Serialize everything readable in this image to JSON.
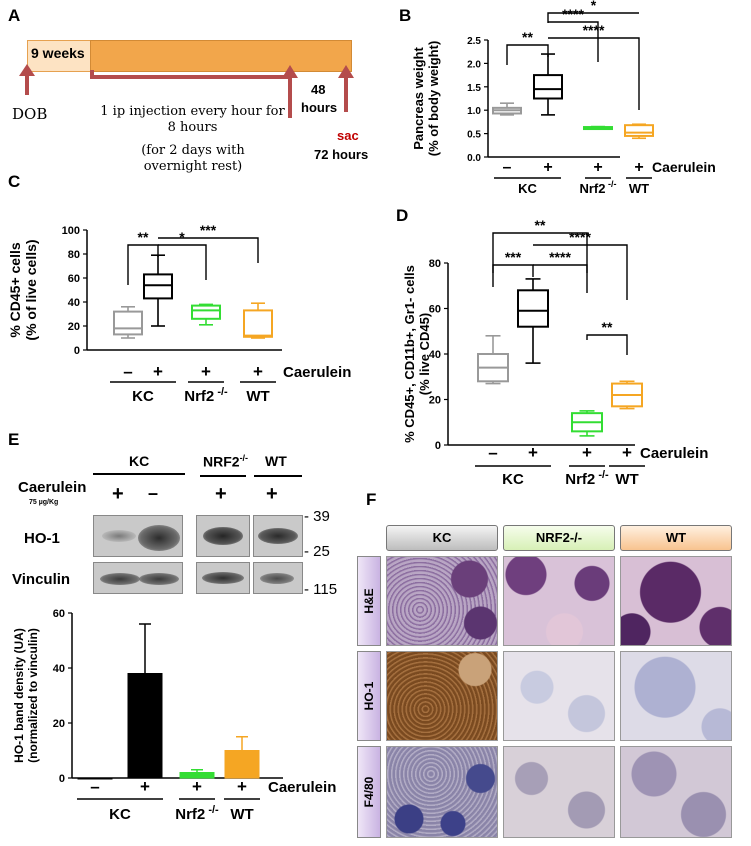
{
  "panels": {
    "a": "A",
    "b": "B",
    "c": "C",
    "d": "D",
    "e": "E",
    "f": "F"
  },
  "panel_a": {
    "age": "9 weeks",
    "dob": "DOB",
    "injection": "1 ip injection every hour for 8 hours",
    "schedule": "(for 2 days with overnight rest)",
    "t48": "48",
    "t48b": "hours",
    "sac": "sac",
    "t72": "72 hours",
    "colors": {
      "bar": "#f2a64b",
      "age_box": "#fde3c3",
      "arrow": "#b44c4c",
      "sac": "#c00000"
    }
  },
  "caerulein_label": "Caerulein",
  "panel_e": {
    "kc": "KC",
    "nrf2": "NRF2",
    "nrf2_sup": "-/-",
    "wt": "WT",
    "caerulein": "Caerulein",
    "dose": "75 µg/Kg",
    "signs": [
      "+",
      "–",
      "+",
      "+"
    ],
    "ho1": "HO-1",
    "vinculin": "Vinculin",
    "mw": [
      "- 39",
      "- 25",
      "- 115"
    ]
  },
  "panel_f": {
    "columns": [
      "KC",
      "NRF2-/-",
      "WT"
    ],
    "rows": [
      "H&E",
      "HO-1",
      "F4/80"
    ],
    "header_colors": [
      "#d0d0d0",
      "#e3f5c8",
      "#fbd3ad"
    ]
  },
  "chart_data": [
    {
      "id": "B",
      "type": "box",
      "ylabel": "Pancreas weight (% of body weight)",
      "ylim": [
        0,
        2.5
      ],
      "yticks": [
        "0.0",
        "0.5",
        "1.0",
        "1.5",
        "2.0",
        "2.5"
      ],
      "caerulein": [
        "–",
        "+",
        "+",
        "+"
      ],
      "groups": [
        "KC",
        "Nrf2 -/-",
        "WT"
      ],
      "series": [
        {
          "color": "#999999",
          "min": 0.9,
          "q1": 0.93,
          "median": 1.0,
          "q3": 1.05,
          "max": 1.15
        },
        {
          "color": "#000000",
          "min": 0.9,
          "q1": 1.25,
          "median": 1.45,
          "q3": 1.75,
          "max": 2.2
        },
        {
          "color": "#33dd33",
          "min": 0.6,
          "q1": 0.6,
          "median": 0.62,
          "q3": 0.64,
          "max": 0.65
        },
        {
          "color": "#f5a623",
          "min": 0.4,
          "q1": 0.45,
          "median": 0.52,
          "q3": 0.68,
          "max": 0.7
        }
      ],
      "significance": [
        "*",
        "**",
        "****",
        "****"
      ]
    },
    {
      "id": "C",
      "type": "box",
      "ylabel": "% CD45+ cells (% of live cells)",
      "ylim": [
        0,
        100
      ],
      "yticks": [
        "0",
        "20",
        "40",
        "60",
        "80",
        "100"
      ],
      "caerulein": [
        "–",
        "+",
        "+",
        "+"
      ],
      "groups": [
        "KC",
        "Nrf2 -/-",
        "WT"
      ],
      "series": [
        {
          "color": "#999999",
          "min": 10,
          "q1": 13,
          "median": 18,
          "q3": 32,
          "max": 36
        },
        {
          "color": "#000000",
          "min": 20,
          "q1": 43,
          "median": 54,
          "q3": 63,
          "max": 79
        },
        {
          "color": "#33dd33",
          "min": 21,
          "q1": 26,
          "median": 33,
          "q3": 37,
          "max": 38
        },
        {
          "color": "#f5a623",
          "min": 10,
          "q1": 11,
          "median": 12,
          "q3": 33,
          "max": 39
        }
      ],
      "significance": [
        "**",
        "*",
        "***"
      ]
    },
    {
      "id": "D",
      "type": "box",
      "ylabel": "% CD45+, CD11b+, Gr1- cells (% live CD45)",
      "ylim": [
        0,
        80
      ],
      "yticks": [
        "0",
        "20",
        "40",
        "60",
        "80"
      ],
      "caerulein": [
        "–",
        "+",
        "+",
        "+"
      ],
      "groups": [
        "KC",
        "Nrf2 -/-",
        "WT"
      ],
      "series": [
        {
          "color": "#999999",
          "min": 27,
          "q1": 28,
          "median": 34,
          "q3": 40,
          "max": 48
        },
        {
          "color": "#000000",
          "min": 36,
          "q1": 52,
          "median": 59,
          "q3": 68,
          "max": 73
        },
        {
          "color": "#33dd33",
          "min": 4,
          "q1": 6,
          "median": 10,
          "q3": 14,
          "max": 15
        },
        {
          "color": "#f5a623",
          "min": 16,
          "q1": 17,
          "median": 22,
          "q3": 27,
          "max": 28
        }
      ],
      "significance": [
        "**",
        "***",
        "****",
        "****",
        "**"
      ]
    },
    {
      "id": "E",
      "type": "bar",
      "ylabel": "HO-1 band density (UA) (normalized to vinculin)",
      "ylim": [
        0,
        60
      ],
      "yticks": [
        "0",
        "20",
        "40",
        "60"
      ],
      "caerulein": [
        "–",
        "+",
        "+",
        "+"
      ],
      "groups": [
        "KC",
        "Nrf2 -/-",
        "WT"
      ],
      "series": [
        {
          "color": "#ffffff",
          "value": 0,
          "err": 0
        },
        {
          "color": "#000000",
          "value": 38,
          "err": 18
        },
        {
          "color": "#33dd33",
          "value": 2,
          "err": 1
        },
        {
          "color": "#f5a623",
          "value": 10,
          "err": 5
        }
      ]
    }
  ]
}
